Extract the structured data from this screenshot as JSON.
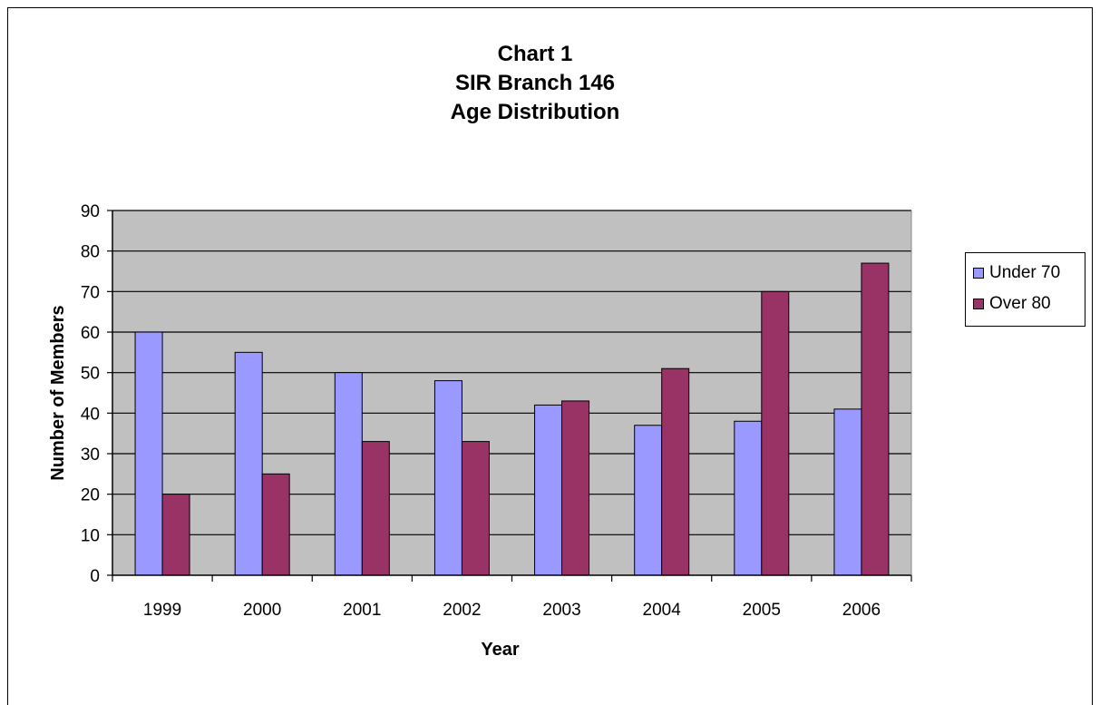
{
  "chart_data": {
    "type": "bar",
    "title_lines": [
      "Chart 1",
      "SIR Branch 146",
      "Age Distribution"
    ],
    "xlabel": "Year",
    "ylabel": "Number of Members",
    "categories": [
      "1999",
      "2000",
      "2001",
      "2002",
      "2003",
      "2004",
      "2005",
      "2006"
    ],
    "series": [
      {
        "name": "Under 70",
        "color": "#9999ff",
        "values": [
          60,
          55,
          50,
          48,
          42,
          37,
          38,
          41
        ]
      },
      {
        "name": "Over 80",
        "color": "#993366",
        "values": [
          20,
          25,
          33,
          33,
          43,
          51,
          70,
          77
        ]
      }
    ],
    "ylim": [
      0,
      90
    ],
    "yticks": [
      0,
      10,
      20,
      30,
      40,
      50,
      60,
      70,
      80,
      90
    ],
    "grid": true,
    "plot_background": "#c0c0c0",
    "legend_position": "right"
  }
}
